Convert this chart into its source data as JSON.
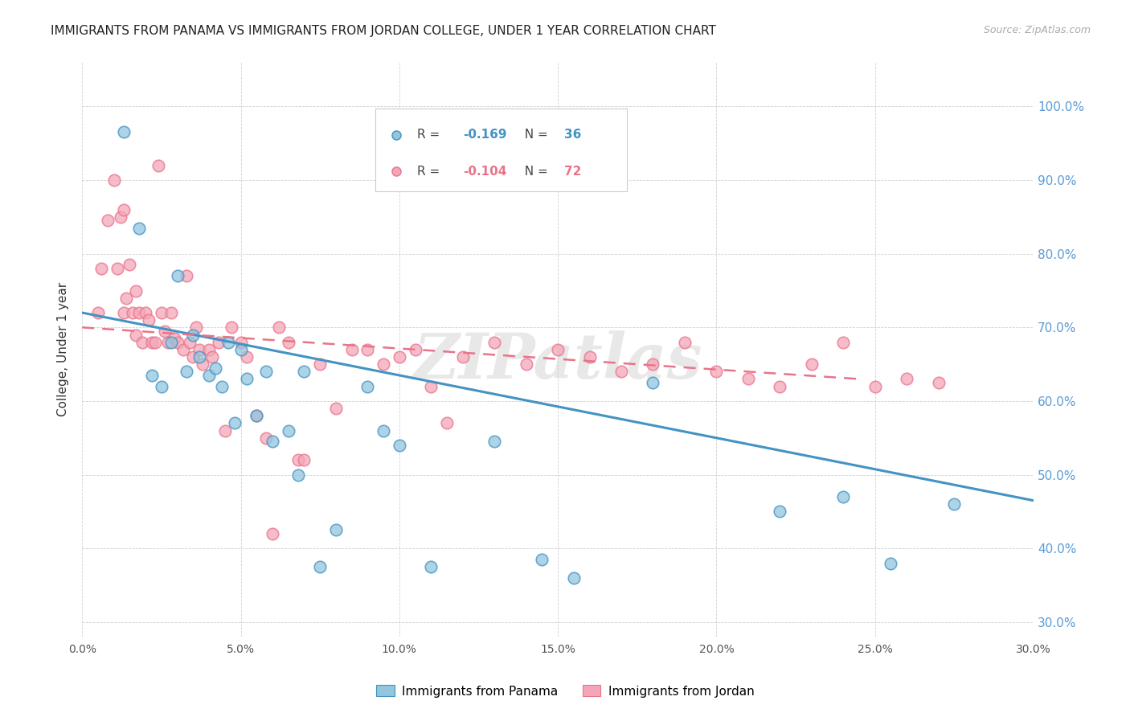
{
  "title": "IMMIGRANTS FROM PANAMA VS IMMIGRANTS FROM JORDAN COLLEGE, UNDER 1 YEAR CORRELATION CHART",
  "source": "Source: ZipAtlas.com",
  "ylabel": "College, Under 1 year",
  "xlabel_vals": [
    0.0,
    0.05,
    0.1,
    0.15,
    0.2,
    0.25,
    0.3
  ],
  "ylabel_vals": [
    0.3,
    0.4,
    0.5,
    0.6,
    0.7,
    0.8,
    0.9,
    1.0
  ],
  "xlim": [
    0.0,
    0.3
  ],
  "ylim": [
    0.28,
    1.06
  ],
  "legend_blue_r": "-0.169",
  "legend_blue_n": "36",
  "legend_pink_r": "-0.104",
  "legend_pink_n": "72",
  "blue_color": "#92c5de",
  "pink_color": "#f4a6b8",
  "blue_line_color": "#4393c3",
  "pink_line_color": "#e8748a",
  "watermark": "ZIPatlas",
  "blue_scatter_x": [
    0.013,
    0.018,
    0.022,
    0.025,
    0.028,
    0.03,
    0.033,
    0.035,
    0.037,
    0.04,
    0.042,
    0.044,
    0.046,
    0.048,
    0.05,
    0.052,
    0.055,
    0.058,
    0.06,
    0.065,
    0.068,
    0.07,
    0.075,
    0.08,
    0.09,
    0.095,
    0.1,
    0.11,
    0.13,
    0.145,
    0.155,
    0.18,
    0.22,
    0.24,
    0.255,
    0.275
  ],
  "blue_scatter_y": [
    0.965,
    0.835,
    0.635,
    0.62,
    0.68,
    0.77,
    0.64,
    0.69,
    0.66,
    0.635,
    0.645,
    0.62,
    0.68,
    0.57,
    0.67,
    0.63,
    0.58,
    0.64,
    0.545,
    0.56,
    0.5,
    0.64,
    0.375,
    0.425,
    0.62,
    0.56,
    0.54,
    0.375,
    0.545,
    0.385,
    0.36,
    0.625,
    0.45,
    0.47,
    0.38,
    0.46
  ],
  "pink_scatter_x": [
    0.005,
    0.006,
    0.008,
    0.01,
    0.011,
    0.012,
    0.013,
    0.013,
    0.014,
    0.015,
    0.016,
    0.017,
    0.017,
    0.018,
    0.019,
    0.02,
    0.021,
    0.022,
    0.023,
    0.024,
    0.025,
    0.026,
    0.027,
    0.028,
    0.029,
    0.03,
    0.032,
    0.033,
    0.034,
    0.035,
    0.036,
    0.037,
    0.038,
    0.04,
    0.041,
    0.043,
    0.045,
    0.047,
    0.05,
    0.052,
    0.055,
    0.058,
    0.06,
    0.062,
    0.065,
    0.068,
    0.07,
    0.075,
    0.08,
    0.085,
    0.09,
    0.095,
    0.1,
    0.105,
    0.11,
    0.115,
    0.12,
    0.13,
    0.14,
    0.15,
    0.16,
    0.17,
    0.18,
    0.19,
    0.2,
    0.21,
    0.22,
    0.23,
    0.24,
    0.25,
    0.26,
    0.27
  ],
  "pink_scatter_y": [
    0.72,
    0.78,
    0.845,
    0.9,
    0.78,
    0.85,
    0.72,
    0.86,
    0.74,
    0.785,
    0.72,
    0.69,
    0.75,
    0.72,
    0.68,
    0.72,
    0.71,
    0.68,
    0.68,
    0.92,
    0.72,
    0.695,
    0.68,
    0.72,
    0.685,
    0.68,
    0.67,
    0.77,
    0.68,
    0.66,
    0.7,
    0.67,
    0.65,
    0.67,
    0.66,
    0.68,
    0.56,
    0.7,
    0.68,
    0.66,
    0.58,
    0.55,
    0.42,
    0.7,
    0.68,
    0.52,
    0.52,
    0.65,
    0.59,
    0.67,
    0.67,
    0.65,
    0.66,
    0.67,
    0.62,
    0.57,
    0.66,
    0.68,
    0.65,
    0.67,
    0.66,
    0.64,
    0.65,
    0.68,
    0.64,
    0.63,
    0.62,
    0.65,
    0.68,
    0.62,
    0.63,
    0.625
  ],
  "blue_trendline_x": [
    0.0,
    0.3
  ],
  "blue_trendline_y": [
    0.72,
    0.465
  ],
  "pink_trendline_x": [
    0.0,
    0.245
  ],
  "pink_trendline_y": [
    0.7,
    0.63
  ]
}
